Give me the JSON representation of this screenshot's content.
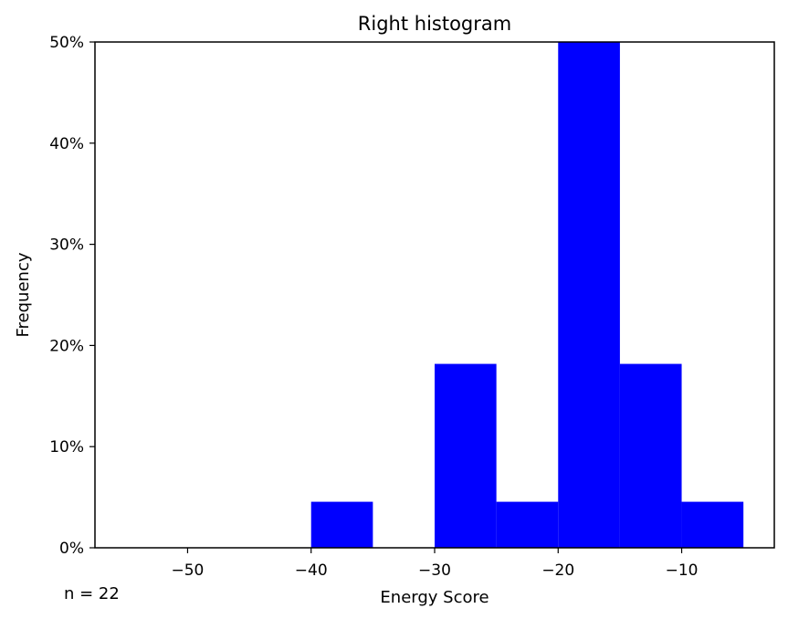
{
  "chart_data": {
    "type": "bar",
    "title": "Right histogram",
    "xlabel": "Energy Score",
    "ylabel": "Frequency",
    "note": "n = 22",
    "xlim": [
      -57.5,
      -2.5
    ],
    "ylim": [
      0,
      0.5
    ],
    "bar_color": "#0000ff",
    "grid": false,
    "xticks": [
      {
        "value": -50,
        "label": "−50"
      },
      {
        "value": -40,
        "label": "−40"
      },
      {
        "value": -30,
        "label": "−30"
      },
      {
        "value": -20,
        "label": "−20"
      },
      {
        "value": -10,
        "label": "−10"
      }
    ],
    "yticks": [
      {
        "value": 0,
        "label": "0%"
      },
      {
        "value": 0.1,
        "label": "10%"
      },
      {
        "value": 0.2,
        "label": "20%"
      },
      {
        "value": 0.3,
        "label": "30%"
      },
      {
        "value": 0.4,
        "label": "40%"
      },
      {
        "value": 0.5,
        "label": "50%"
      }
    ],
    "bins": [
      {
        "x0": -40,
        "x1": -35,
        "value": 0.0455
      },
      {
        "x0": -30,
        "x1": -25,
        "value": 0.1818
      },
      {
        "x0": -25,
        "x1": -20,
        "value": 0.0455
      },
      {
        "x0": -20,
        "x1": -15,
        "value": 0.5
      },
      {
        "x0": -15,
        "x1": -10,
        "value": 0.1818
      },
      {
        "x0": -10,
        "x1": -5,
        "value": 0.0455
      }
    ]
  }
}
